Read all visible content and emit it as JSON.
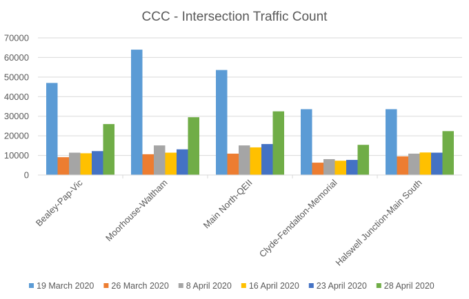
{
  "chart_data": {
    "type": "bar",
    "title": "CCC - Intersection Traffic Count",
    "xlabel": "",
    "ylabel": "",
    "ylim": [
      0,
      70000
    ],
    "yticks": [
      0,
      10000,
      20000,
      30000,
      40000,
      50000,
      60000,
      70000
    ],
    "grid": true,
    "legend_position": "bottom",
    "categories": [
      "Bealey-Pap-Vic",
      "Moorhouse-Waltham",
      "Main North-QEII",
      "Clyde-Fendalton-Memorial",
      "Halswell Junction-Main South"
    ],
    "series": [
      {
        "name": "19 March 2020",
        "color": "#5b9bd5",
        "values": [
          47000,
          64000,
          53600,
          33600,
          33600
        ]
      },
      {
        "name": "26 March 2020",
        "color": "#ed7d31",
        "values": [
          9100,
          10600,
          10900,
          6300,
          9500
        ]
      },
      {
        "name": "8 April 2020",
        "color": "#a5a5a5",
        "values": [
          11400,
          15100,
          15100,
          8100,
          10900
        ]
      },
      {
        "name": "16 April 2020",
        "color": "#ffc000",
        "values": [
          11100,
          11400,
          14100,
          7300,
          11500
        ]
      },
      {
        "name": "23 April 2020",
        "color": "#4472c4",
        "values": [
          12200,
          13100,
          15800,
          7700,
          11400
        ]
      },
      {
        "name": "28 April 2020",
        "color": "#70ad47",
        "values": [
          26000,
          29500,
          32500,
          15400,
          22400
        ]
      }
    ]
  }
}
